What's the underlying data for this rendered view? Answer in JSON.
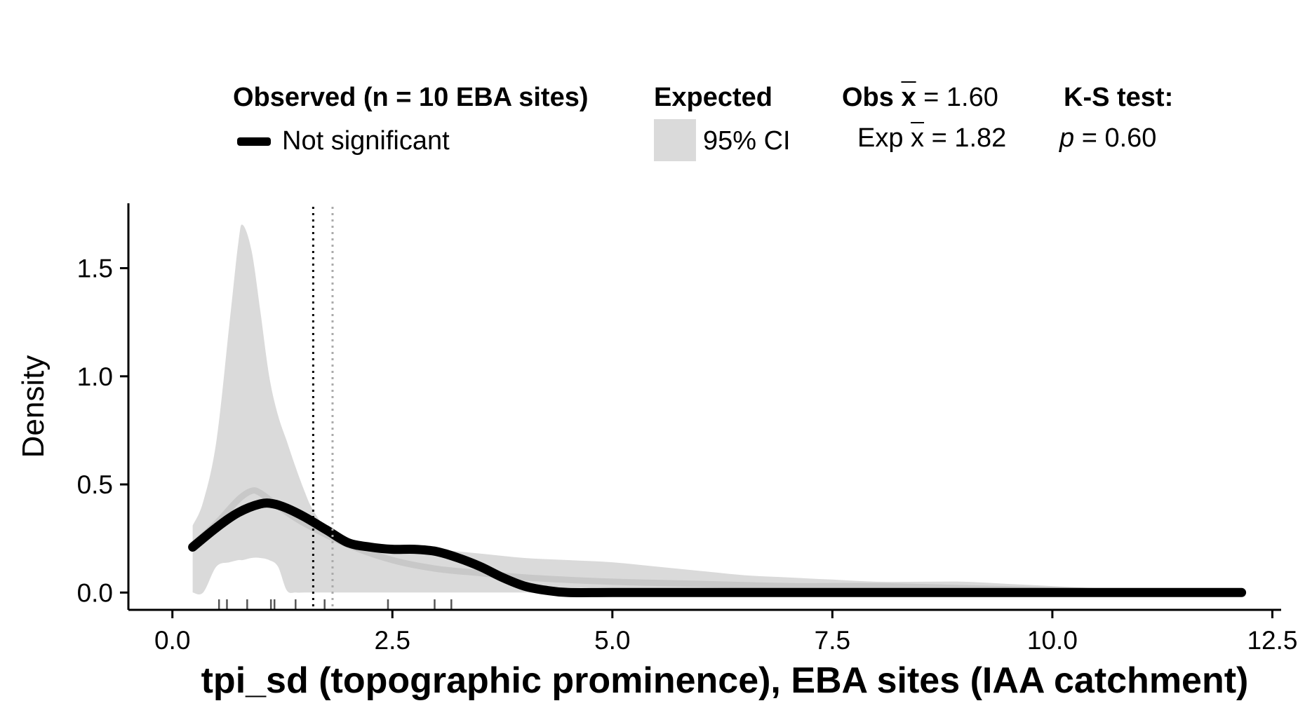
{
  "chart_data": {
    "type": "area",
    "xlabel": "tpi_sd (topographic prominence), EBA sites (IAA catchment)",
    "ylabel": "Density",
    "xlim": [
      -0.5,
      12.6
    ],
    "ylim": [
      -0.08,
      1.8
    ],
    "xticks": [
      0.0,
      2.5,
      5.0,
      7.5,
      10.0,
      12.5
    ],
    "xtick_labels": [
      "0.0",
      "2.5",
      "5.0",
      "7.5",
      "10.0",
      "12.5"
    ],
    "yticks": [
      0.0,
      0.5,
      1.0,
      1.5
    ],
    "ytick_labels": [
      "0.0",
      "0.5",
      "1.0",
      "1.5"
    ],
    "grid": false,
    "legend": {
      "observed_title": "Observed (n = 10 EBA sites)",
      "observed_item": "Not significant",
      "expected_title": "Expected",
      "expected_item": "95% CI",
      "obs_mean_label": "Obs",
      "obs_mean_var": "x",
      "obs_mean_value": "= 1.60",
      "exp_mean_label": "Exp",
      "exp_mean_var": "x",
      "exp_mean_value": "= 1.82",
      "ks_title": "K-S test:",
      "ks_p_label": "p",
      "ks_p_value": "= 0.60"
    },
    "means": {
      "observed": 1.6,
      "expected": 1.82
    },
    "series": [
      {
        "name": "95% CI",
        "kind": "band",
        "color": "#dadada",
        "x": [
          0.23,
          0.35,
          0.5,
          0.65,
          0.75,
          0.8,
          0.9,
          1.0,
          1.1,
          1.2,
          1.3,
          1.4,
          1.5,
          1.6,
          1.8,
          2.0,
          2.5,
          3.0,
          3.5,
          4.0,
          4.5,
          5.0,
          5.5,
          6.0,
          6.5,
          7.0,
          7.5,
          8.0,
          8.5,
          9.0,
          9.5,
          10.0,
          10.5,
          11.0,
          11.5,
          12.0
        ],
        "upper": [
          0.31,
          0.42,
          0.7,
          1.25,
          1.62,
          1.7,
          1.58,
          1.3,
          1.0,
          0.82,
          0.7,
          0.58,
          0.47,
          0.38,
          0.27,
          0.24,
          0.22,
          0.2,
          0.18,
          0.16,
          0.15,
          0.14,
          0.12,
          0.1,
          0.08,
          0.07,
          0.06,
          0.05,
          0.05,
          0.05,
          0.04,
          0.03,
          0.02,
          0.01,
          0.0,
          0.0
        ],
        "lower": [
          0.0,
          0.0,
          0.12,
          0.14,
          0.15,
          0.15,
          0.16,
          0.16,
          0.15,
          0.12,
          0.01,
          0.0,
          0.0,
          0.0,
          0.0,
          0.0,
          0.0,
          0.0,
          0.0,
          0.0,
          0.0,
          0.0,
          0.0,
          0.0,
          0.0,
          0.0,
          0.0,
          0.0,
          0.0,
          0.0,
          0.0,
          0.0,
          0.0,
          0.0,
          0.0,
          0.0
        ]
      },
      {
        "name": "Expected mean",
        "kind": "line",
        "color": "#c8c8c8",
        "x": [
          0.23,
          0.5,
          0.75,
          0.9,
          1.0,
          1.2,
          1.5,
          2.0,
          2.5,
          3.0,
          3.5,
          4.0,
          5.0,
          6.0,
          7.0,
          8.0,
          9.0,
          10.0,
          11.0,
          12.0
        ],
        "y": [
          0.22,
          0.32,
          0.43,
          0.47,
          0.46,
          0.4,
          0.32,
          0.22,
          0.15,
          0.11,
          0.09,
          0.07,
          0.05,
          0.04,
          0.03,
          0.03,
          0.02,
          0.01,
          0.0,
          0.0
        ]
      },
      {
        "name": "Not significant",
        "kind": "line",
        "color": "#000000",
        "x": [
          0.23,
          0.5,
          0.75,
          1.0,
          1.15,
          1.3,
          1.5,
          1.75,
          2.0,
          2.25,
          2.5,
          2.75,
          3.0,
          3.25,
          3.5,
          3.75,
          4.0,
          4.25,
          4.5,
          5.0,
          6.0,
          8.0,
          10.0,
          12.15
        ],
        "y": [
          0.21,
          0.3,
          0.37,
          0.41,
          0.41,
          0.39,
          0.35,
          0.29,
          0.23,
          0.21,
          0.2,
          0.2,
          0.19,
          0.16,
          0.12,
          0.07,
          0.03,
          0.01,
          0.0,
          0.0,
          0.0,
          0.0,
          0.0,
          0.0
        ]
      }
    ],
    "rug": [
      0.53,
      0.62,
      0.85,
      1.12,
      1.16,
      1.4,
      1.73,
      2.45,
      2.98,
      3.17
    ]
  }
}
